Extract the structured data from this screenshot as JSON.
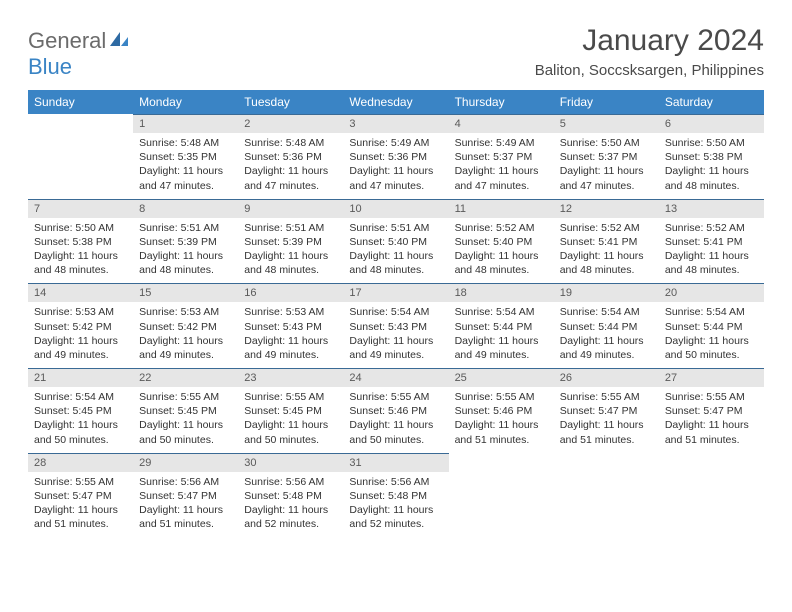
{
  "brand": {
    "part1": "General",
    "part2": "Blue"
  },
  "title": "January 2024",
  "location": "Baliton, Soccsksargen, Philippines",
  "styling": {
    "header_bg": "#3a84c5",
    "header_text": "#ffffff",
    "daynum_bg": "#e6e6e6",
    "daynum_text": "#5a5a5a",
    "daynum_border_top": "#3a6a95",
    "body_text": "#333333",
    "page_bg": "#ffffff",
    "title_color": "#4a4a4a",
    "logo_gray": "#6b6b6b",
    "logo_blue": "#3a84c5",
    "title_fontsize": 30,
    "location_fontsize": 15,
    "header_fontsize": 12,
    "daynum_fontsize": 11,
    "body_fontsize": 10.5
  },
  "columns": [
    "Sunday",
    "Monday",
    "Tuesday",
    "Wednesday",
    "Thursday",
    "Friday",
    "Saturday"
  ],
  "weeks": [
    [
      null,
      {
        "n": "1",
        "sr": "5:48 AM",
        "ss": "5:35 PM",
        "dl": "11 hours and 47 minutes."
      },
      {
        "n": "2",
        "sr": "5:48 AM",
        "ss": "5:36 PM",
        "dl": "11 hours and 47 minutes."
      },
      {
        "n": "3",
        "sr": "5:49 AM",
        "ss": "5:36 PM",
        "dl": "11 hours and 47 minutes."
      },
      {
        "n": "4",
        "sr": "5:49 AM",
        "ss": "5:37 PM",
        "dl": "11 hours and 47 minutes."
      },
      {
        "n": "5",
        "sr": "5:50 AM",
        "ss": "5:37 PM",
        "dl": "11 hours and 47 minutes."
      },
      {
        "n": "6",
        "sr": "5:50 AM",
        "ss": "5:38 PM",
        "dl": "11 hours and 48 minutes."
      }
    ],
    [
      {
        "n": "7",
        "sr": "5:50 AM",
        "ss": "5:38 PM",
        "dl": "11 hours and 48 minutes."
      },
      {
        "n": "8",
        "sr": "5:51 AM",
        "ss": "5:39 PM",
        "dl": "11 hours and 48 minutes."
      },
      {
        "n": "9",
        "sr": "5:51 AM",
        "ss": "5:39 PM",
        "dl": "11 hours and 48 minutes."
      },
      {
        "n": "10",
        "sr": "5:51 AM",
        "ss": "5:40 PM",
        "dl": "11 hours and 48 minutes."
      },
      {
        "n": "11",
        "sr": "5:52 AM",
        "ss": "5:40 PM",
        "dl": "11 hours and 48 minutes."
      },
      {
        "n": "12",
        "sr": "5:52 AM",
        "ss": "5:41 PM",
        "dl": "11 hours and 48 minutes."
      },
      {
        "n": "13",
        "sr": "5:52 AM",
        "ss": "5:41 PM",
        "dl": "11 hours and 48 minutes."
      }
    ],
    [
      {
        "n": "14",
        "sr": "5:53 AM",
        "ss": "5:42 PM",
        "dl": "11 hours and 49 minutes."
      },
      {
        "n": "15",
        "sr": "5:53 AM",
        "ss": "5:42 PM",
        "dl": "11 hours and 49 minutes."
      },
      {
        "n": "16",
        "sr": "5:53 AM",
        "ss": "5:43 PM",
        "dl": "11 hours and 49 minutes."
      },
      {
        "n": "17",
        "sr": "5:54 AM",
        "ss": "5:43 PM",
        "dl": "11 hours and 49 minutes."
      },
      {
        "n": "18",
        "sr": "5:54 AM",
        "ss": "5:44 PM",
        "dl": "11 hours and 49 minutes."
      },
      {
        "n": "19",
        "sr": "5:54 AM",
        "ss": "5:44 PM",
        "dl": "11 hours and 49 minutes."
      },
      {
        "n": "20",
        "sr": "5:54 AM",
        "ss": "5:44 PM",
        "dl": "11 hours and 50 minutes."
      }
    ],
    [
      {
        "n": "21",
        "sr": "5:54 AM",
        "ss": "5:45 PM",
        "dl": "11 hours and 50 minutes."
      },
      {
        "n": "22",
        "sr": "5:55 AM",
        "ss": "5:45 PM",
        "dl": "11 hours and 50 minutes."
      },
      {
        "n": "23",
        "sr": "5:55 AM",
        "ss": "5:45 PM",
        "dl": "11 hours and 50 minutes."
      },
      {
        "n": "24",
        "sr": "5:55 AM",
        "ss": "5:46 PM",
        "dl": "11 hours and 50 minutes."
      },
      {
        "n": "25",
        "sr": "5:55 AM",
        "ss": "5:46 PM",
        "dl": "11 hours and 51 minutes."
      },
      {
        "n": "26",
        "sr": "5:55 AM",
        "ss": "5:47 PM",
        "dl": "11 hours and 51 minutes."
      },
      {
        "n": "27",
        "sr": "5:55 AM",
        "ss": "5:47 PM",
        "dl": "11 hours and 51 minutes."
      }
    ],
    [
      {
        "n": "28",
        "sr": "5:55 AM",
        "ss": "5:47 PM",
        "dl": "11 hours and 51 minutes."
      },
      {
        "n": "29",
        "sr": "5:56 AM",
        "ss": "5:47 PM",
        "dl": "11 hours and 51 minutes."
      },
      {
        "n": "30",
        "sr": "5:56 AM",
        "ss": "5:48 PM",
        "dl": "11 hours and 52 minutes."
      },
      {
        "n": "31",
        "sr": "5:56 AM",
        "ss": "5:48 PM",
        "dl": "11 hours and 52 minutes."
      },
      null,
      null,
      null
    ]
  ],
  "labels": {
    "sunrise": "Sunrise:",
    "sunset": "Sunset:",
    "daylight": "Daylight:"
  }
}
